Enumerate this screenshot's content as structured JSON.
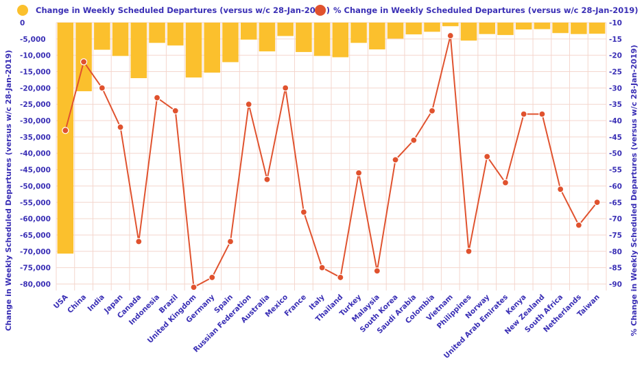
{
  "colors": {
    "bar": "#fbc02d",
    "line": "#e0522e",
    "text": "#3a2fb5",
    "grid": "#f4d6cd",
    "marker_stroke": "#ffffff"
  },
  "legend": {
    "bar_label": "Change in Weekly Scheduled Departures (versus w/c 28-Jan-2019)",
    "line_label": "% Change in Weekly Scheduled Departures (versus w/c 28-Jan-2019)"
  },
  "chart_data": {
    "type": "bar",
    "categories": [
      "USA",
      "China",
      "India",
      "Japan",
      "Canada",
      "Indonesia",
      "Brazil",
      "United Kingdom",
      "Germany",
      "Spain",
      "Russian Federation",
      "Australia",
      "Mexico",
      "France",
      "Italy",
      "Thailand",
      "Turkey",
      "Malaysia",
      "South Korea",
      "Saudi Arabia",
      "Colombia",
      "Vietnam",
      "Philippines",
      "Norway",
      "United Arab Emirates",
      "Kenya",
      "New Zealand",
      "South Africa",
      "Netherlands",
      "Taiwan"
    ],
    "series": [
      {
        "name": "Change in Weekly Scheduled Departures (versus w/c 28-Jan-2019)",
        "type": "bar",
        "axis": "left",
        "values": [
          -70700,
          -21000,
          -8300,
          -10200,
          -17000,
          -6200,
          -7000,
          -16800,
          -15300,
          -12100,
          -5200,
          -8800,
          -4100,
          -9000,
          -10200,
          -10600,
          -6200,
          -8200,
          -4900,
          -3600,
          -2800,
          -1100,
          -5500,
          -3500,
          -3800,
          -2100,
          -2000,
          -3200,
          -3500,
          -3400
        ]
      },
      {
        "name": "% Change in Weekly Scheduled Departures (versus w/c 28-Jan-2019)",
        "type": "line",
        "axis": "right",
        "values": [
          -43,
          -22,
          -30,
          -42,
          -77,
          -33,
          -37,
          -91,
          -88,
          -77,
          -35,
          -58,
          -30,
          -68,
          -85,
          -88,
          -56,
          -86,
          -52,
          -46,
          -37,
          -14,
          -80,
          -51,
          -59,
          -38,
          -38,
          -61,
          -72,
          -65
        ]
      }
    ],
    "y_left": {
      "label": "Change in Weekly Scheduled Departures (versus w/c 28-Jan-2019)",
      "ylim": [
        -82000,
        0
      ],
      "ticks": [
        0,
        -5000,
        -10000,
        -15000,
        -20000,
        -25000,
        -30000,
        -35000,
        -40000,
        -45000,
        -50000,
        -55000,
        -60000,
        -65000,
        -70000,
        -75000,
        -80000
      ],
      "tick_labels": [
        "0",
        "-5,000",
        "-10,000",
        "-15,000",
        "-20,000",
        "-25,000",
        "-30,000",
        "-35,000",
        "-40,000",
        "-45,000",
        "-50,000",
        "-55,000",
        "-60,000",
        "-65,000",
        "-70,000",
        "-75,000",
        "-80,000"
      ]
    },
    "y_right": {
      "label": "% Change in Weekly Scheduled Departures (versus w/c 28-Jan-2019)",
      "ylim": [
        -92,
        -10
      ],
      "ticks": [
        -10,
        -15,
        -20,
        -25,
        -30,
        -35,
        -40,
        -45,
        -50,
        -55,
        -60,
        -65,
        -70,
        -75,
        -80,
        -85,
        -90
      ],
      "tick_labels": [
        "-10",
        "-15",
        "-20",
        "-25",
        "-30",
        "-35",
        "-40",
        "-45",
        "-50",
        "-55",
        "-60",
        "-65",
        "-70",
        "-75",
        "-80",
        "-85",
        "-90"
      ]
    },
    "grid": true,
    "legend_position": "top"
  }
}
